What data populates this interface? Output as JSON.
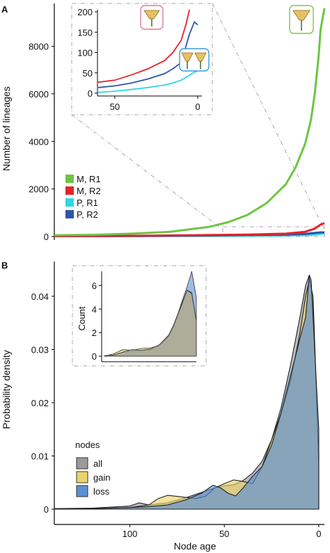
{
  "panel_a": {
    "letter": "A",
    "ylabel": "Number of lineages",
    "y_ticks": [
      "0",
      "2000",
      "4000",
      "6000",
      "8000"
    ],
    "legend": [
      {
        "label": "M, R1",
        "color": "#6cc644"
      },
      {
        "label": "M, R2",
        "color": "#e3242b"
      },
      {
        "label": "P, R1",
        "color": "#2fd6e6"
      },
      {
        "label": "P, R2",
        "color": "#2d56a6"
      }
    ],
    "inset": {
      "y_ticks": [
        "0",
        "50",
        "100",
        "150",
        "200"
      ],
      "x_ticks": [
        "50",
        "0"
      ]
    },
    "flower_icons": [
      "single-flower-icon-red",
      "paired-flowers-icon-blue",
      "single-flower-icon-green"
    ]
  },
  "panel_b": {
    "letter": "B",
    "ylabel": "Probability density",
    "xlabel": "Node age",
    "y_ticks": [
      "0",
      "0.01",
      "0.02",
      "0.03",
      "0.04"
    ],
    "x_ticks": [
      "100",
      "50",
      "0"
    ],
    "legend_title": "nodes",
    "legend": [
      {
        "label": "all",
        "color": "#9a9a9a"
      },
      {
        "label": "gain",
        "color": "#ead36a"
      },
      {
        "label": "loss",
        "color": "#5b8fd6"
      }
    ],
    "inset": {
      "ylabel": "Count",
      "y_ticks": [
        "0",
        "2",
        "4",
        "6"
      ]
    }
  },
  "chart_data": [
    {
      "type": "line",
      "panel": "A",
      "xlabel": "",
      "ylabel": "Number of lineages",
      "x_direction": "reversed (time, present at right)",
      "ylim": [
        0,
        9800
      ],
      "series": [
        {
          "name": "M, R1",
          "x": [
            140,
            120,
            100,
            80,
            60,
            50,
            40,
            30,
            20,
            15,
            10,
            7,
            5,
            3,
            2,
            0
          ],
          "y": [
            50,
            70,
            120,
            200,
            400,
            600,
            900,
            1400,
            2200,
            2900,
            3900,
            4900,
            6000,
            7600,
            8700,
            9600
          ]
        },
        {
          "name": "M, R2",
          "x": [
            140,
            100,
            60,
            40,
            20,
            10,
            5,
            2,
            0
          ],
          "y": [
            20,
            30,
            60,
            80,
            120,
            200,
            330,
            500,
            560
          ]
        },
        {
          "name": "P, R1",
          "x": [
            140,
            100,
            60,
            40,
            20,
            10,
            5,
            2,
            0
          ],
          "y": [
            10,
            15,
            25,
            35,
            45,
            60,
            80,
            110,
            130
          ]
        },
        {
          "name": "P, R2",
          "x": [
            140,
            100,
            60,
            40,
            20,
            10,
            5,
            2,
            0
          ],
          "y": [
            15,
            20,
            40,
            60,
            80,
            110,
            150,
            175,
            170
          ]
        }
      ]
    },
    {
      "type": "line",
      "panel": "A inset",
      "x_ticks": [
        50,
        0
      ],
      "ylim": [
        0,
        200
      ],
      "series": [
        {
          "name": "M, R2",
          "x": [
            60,
            50,
            40,
            30,
            20,
            15,
            10,
            7,
            5
          ],
          "y": [
            27,
            32,
            45,
            60,
            80,
            100,
            130,
            170,
            205
          ]
        },
        {
          "name": "P, R2",
          "x": [
            60,
            50,
            40,
            30,
            20,
            15,
            10,
            5,
            2,
            0
          ],
          "y": [
            14,
            18,
            25,
            35,
            48,
            60,
            75,
            145,
            175,
            168
          ]
        },
        {
          "name": "P, R1",
          "x": [
            60,
            50,
            40,
            30,
            20,
            15,
            10,
            5,
            2,
            0
          ],
          "y": [
            2,
            5,
            9,
            14,
            20,
            25,
            32,
            44,
            52,
            55
          ]
        }
      ]
    },
    {
      "type": "area",
      "panel": "B",
      "xlabel": "Node age",
      "ylabel": "Probability density",
      "xlim": [
        140,
        -3
      ],
      "ylim": [
        -0.001,
        0.046
      ],
      "series": [
        {
          "name": "all",
          "x": [
            140,
            120,
            100,
            95,
            90,
            80,
            70,
            60,
            55,
            50,
            45,
            40,
            35,
            30,
            25,
            20,
            15,
            10,
            7,
            5,
            3,
            1,
            0
          ],
          "y": [
            0.0001,
            0.0002,
            0.0006,
            0.0012,
            0.0008,
            0.0012,
            0.0022,
            0.0034,
            0.004,
            0.0044,
            0.0046,
            0.0054,
            0.0068,
            0.009,
            0.013,
            0.019,
            0.027,
            0.036,
            0.042,
            0.044,
            0.038,
            0.018,
            0.01
          ]
        },
        {
          "name": "gain",
          "x": [
            140,
            120,
            100,
            90,
            85,
            80,
            75,
            70,
            65,
            60,
            55,
            50,
            45,
            40,
            35,
            30,
            25,
            20,
            15,
            10,
            7,
            5,
            3,
            1,
            0
          ],
          "y": [
            0.0,
            0.0001,
            0.0003,
            0.0008,
            0.002,
            0.0026,
            0.0024,
            0.0022,
            0.002,
            0.0024,
            0.004,
            0.0048,
            0.0055,
            0.0052,
            0.0048,
            0.008,
            0.013,
            0.018,
            0.024,
            0.033,
            0.04,
            0.043,
            0.04,
            0.02,
            0.008
          ]
        },
        {
          "name": "loss",
          "x": [
            140,
            120,
            100,
            90,
            80,
            70,
            62,
            56,
            52,
            48,
            44,
            40,
            35,
            30,
            25,
            20,
            15,
            10,
            7,
            5,
            4,
            3,
            1,
            0
          ],
          "y": [
            0.0,
            0.0001,
            0.0003,
            0.0005,
            0.0008,
            0.0018,
            0.003,
            0.0045,
            0.004,
            0.003,
            0.0025,
            0.004,
            0.0062,
            0.008,
            0.012,
            0.018,
            0.025,
            0.032,
            0.036,
            0.044,
            0.043,
            0.036,
            0.022,
            0.015
          ]
        }
      ]
    },
    {
      "type": "area",
      "panel": "B inset",
      "ylabel": "Count",
      "ylim": [
        -0.3,
        7.5
      ],
      "series": [
        {
          "name": "all",
          "x": [
            0,
            0.1,
            0.2,
            0.3,
            0.4,
            0.5,
            0.6,
            0.7,
            0.75,
            0.8,
            0.85,
            0.9,
            0.95,
            1.0
          ],
          "y": [
            0.05,
            0.1,
            0.35,
            0.55,
            0.5,
            0.6,
            1.0,
            1.8,
            2.6,
            3.6,
            4.6,
            5.6,
            5.3,
            3.0
          ]
        },
        {
          "name": "gain",
          "x": [
            0,
            0.1,
            0.2,
            0.3,
            0.4,
            0.5,
            0.6,
            0.7,
            0.75,
            0.8,
            0.85,
            0.9,
            0.95,
            1.0
          ],
          "y": [
            0.0,
            0.2,
            0.55,
            0.5,
            0.65,
            0.7,
            0.9,
            1.7,
            2.5,
            3.5,
            4.5,
            5.6,
            5.4,
            3.0
          ]
        },
        {
          "name": "loss",
          "x": [
            0,
            0.1,
            0.2,
            0.3,
            0.4,
            0.5,
            0.6,
            0.7,
            0.75,
            0.8,
            0.85,
            0.9,
            0.95,
            1.0
          ],
          "y": [
            0.0,
            0.1,
            0.3,
            0.4,
            0.45,
            0.55,
            0.9,
            1.8,
            2.6,
            3.6,
            4.8,
            5.9,
            7.2,
            5.0
          ]
        }
      ]
    }
  ]
}
